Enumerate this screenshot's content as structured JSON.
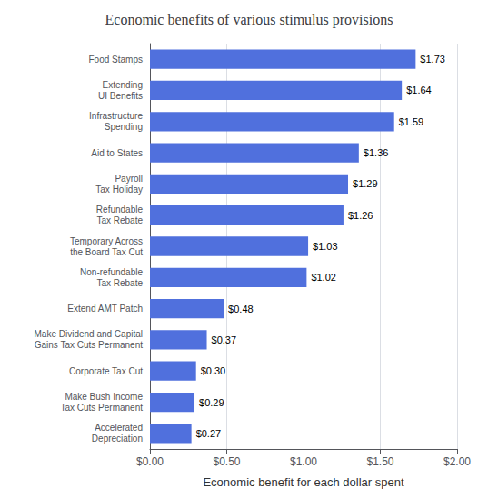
{
  "chart_data": {
    "type": "bar",
    "orientation": "horizontal",
    "title": "Economic benefits of various stimulus provisions",
    "xlabel": "Economic benefit for each dollar spent",
    "categories": [
      "Food Stamps",
      "Extending\nUI Benefits",
      "Infrastructure\nSpending",
      "Aid to States",
      "Payroll\nTax Holiday",
      "Refundable\nTax Rebate",
      "Temporary Across\nthe Board Tax Cut",
      "Non-refundable\nTax Rebate",
      "Extend AMT Patch",
      "Make Dividend and Capital\nGains Tax Cuts Permanent",
      "Corporate Tax Cut",
      "Make Bush Income\nTax Cuts Permanent",
      "Accelerated\nDepreciation"
    ],
    "values": [
      1.73,
      1.64,
      1.59,
      1.36,
      1.29,
      1.26,
      1.03,
      1.02,
      0.48,
      0.37,
      0.3,
      0.29,
      0.27
    ],
    "value_labels": [
      "$1.73",
      "$1.64",
      "$1.59",
      "$1.36",
      "$1.29",
      "$1.26",
      "$1.03",
      "$1.02",
      "$0.48",
      "$0.37",
      "$0.30",
      "$0.29",
      "$0.27"
    ],
    "data_labels": true,
    "xlim": [
      0,
      2.0
    ],
    "xticks": [
      {
        "value": 0.0,
        "label": "$0.00"
      },
      {
        "value": 0.5,
        "label": "$0.50"
      },
      {
        "value": 1.0,
        "label": "$1.00"
      },
      {
        "value": 1.5,
        "label": "$1.50"
      },
      {
        "value": 2.0,
        "label": "$2.00"
      }
    ],
    "grid": true
  }
}
